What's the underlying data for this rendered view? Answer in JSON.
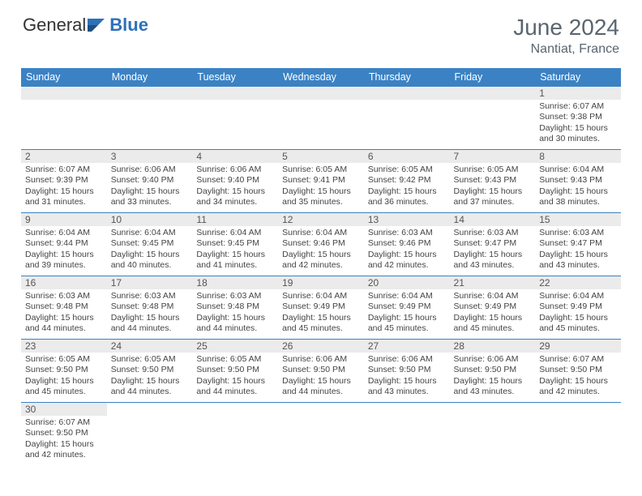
{
  "brand": {
    "part1": "General",
    "part2": "Blue"
  },
  "title": "June 2024",
  "location": "Nantiat, France",
  "colors": {
    "header_bg": "#3b82c4",
    "header_text": "#ffffff",
    "daynum_bg": "#ebebeb",
    "border": "#3b82c4",
    "body_text": "#444444",
    "title_text": "#5a6570"
  },
  "weekdays": [
    "Sunday",
    "Monday",
    "Tuesday",
    "Wednesday",
    "Thursday",
    "Friday",
    "Saturday"
  ],
  "weeks": [
    [
      null,
      null,
      null,
      null,
      null,
      null,
      {
        "n": "1",
        "sr": "6:07 AM",
        "ss": "9:38 PM",
        "dl": "15 hours and 30 minutes."
      }
    ],
    [
      {
        "n": "2",
        "sr": "6:07 AM",
        "ss": "9:39 PM",
        "dl": "15 hours and 31 minutes."
      },
      {
        "n": "3",
        "sr": "6:06 AM",
        "ss": "9:40 PM",
        "dl": "15 hours and 33 minutes."
      },
      {
        "n": "4",
        "sr": "6:06 AM",
        "ss": "9:40 PM",
        "dl": "15 hours and 34 minutes."
      },
      {
        "n": "5",
        "sr": "6:05 AM",
        "ss": "9:41 PM",
        "dl": "15 hours and 35 minutes."
      },
      {
        "n": "6",
        "sr": "6:05 AM",
        "ss": "9:42 PM",
        "dl": "15 hours and 36 minutes."
      },
      {
        "n": "7",
        "sr": "6:05 AM",
        "ss": "9:43 PM",
        "dl": "15 hours and 37 minutes."
      },
      {
        "n": "8",
        "sr": "6:04 AM",
        "ss": "9:43 PM",
        "dl": "15 hours and 38 minutes."
      }
    ],
    [
      {
        "n": "9",
        "sr": "6:04 AM",
        "ss": "9:44 PM",
        "dl": "15 hours and 39 minutes."
      },
      {
        "n": "10",
        "sr": "6:04 AM",
        "ss": "9:45 PM",
        "dl": "15 hours and 40 minutes."
      },
      {
        "n": "11",
        "sr": "6:04 AM",
        "ss": "9:45 PM",
        "dl": "15 hours and 41 minutes."
      },
      {
        "n": "12",
        "sr": "6:04 AM",
        "ss": "9:46 PM",
        "dl": "15 hours and 42 minutes."
      },
      {
        "n": "13",
        "sr": "6:03 AM",
        "ss": "9:46 PM",
        "dl": "15 hours and 42 minutes."
      },
      {
        "n": "14",
        "sr": "6:03 AM",
        "ss": "9:47 PM",
        "dl": "15 hours and 43 minutes."
      },
      {
        "n": "15",
        "sr": "6:03 AM",
        "ss": "9:47 PM",
        "dl": "15 hours and 43 minutes."
      }
    ],
    [
      {
        "n": "16",
        "sr": "6:03 AM",
        "ss": "9:48 PM",
        "dl": "15 hours and 44 minutes."
      },
      {
        "n": "17",
        "sr": "6:03 AM",
        "ss": "9:48 PM",
        "dl": "15 hours and 44 minutes."
      },
      {
        "n": "18",
        "sr": "6:03 AM",
        "ss": "9:48 PM",
        "dl": "15 hours and 44 minutes."
      },
      {
        "n": "19",
        "sr": "6:04 AM",
        "ss": "9:49 PM",
        "dl": "15 hours and 45 minutes."
      },
      {
        "n": "20",
        "sr": "6:04 AM",
        "ss": "9:49 PM",
        "dl": "15 hours and 45 minutes."
      },
      {
        "n": "21",
        "sr": "6:04 AM",
        "ss": "9:49 PM",
        "dl": "15 hours and 45 minutes."
      },
      {
        "n": "22",
        "sr": "6:04 AM",
        "ss": "9:49 PM",
        "dl": "15 hours and 45 minutes."
      }
    ],
    [
      {
        "n": "23",
        "sr": "6:05 AM",
        "ss": "9:50 PM",
        "dl": "15 hours and 45 minutes."
      },
      {
        "n": "24",
        "sr": "6:05 AM",
        "ss": "9:50 PM",
        "dl": "15 hours and 44 minutes."
      },
      {
        "n": "25",
        "sr": "6:05 AM",
        "ss": "9:50 PM",
        "dl": "15 hours and 44 minutes."
      },
      {
        "n": "26",
        "sr": "6:06 AM",
        "ss": "9:50 PM",
        "dl": "15 hours and 44 minutes."
      },
      {
        "n": "27",
        "sr": "6:06 AM",
        "ss": "9:50 PM",
        "dl": "15 hours and 43 minutes."
      },
      {
        "n": "28",
        "sr": "6:06 AM",
        "ss": "9:50 PM",
        "dl": "15 hours and 43 minutes."
      },
      {
        "n": "29",
        "sr": "6:07 AM",
        "ss": "9:50 PM",
        "dl": "15 hours and 42 minutes."
      }
    ],
    [
      {
        "n": "30",
        "sr": "6:07 AM",
        "ss": "9:50 PM",
        "dl": "15 hours and 42 minutes."
      },
      null,
      null,
      null,
      null,
      null,
      null
    ]
  ],
  "labels": {
    "sunrise": "Sunrise:",
    "sunset": "Sunset:",
    "daylight": "Daylight:"
  }
}
